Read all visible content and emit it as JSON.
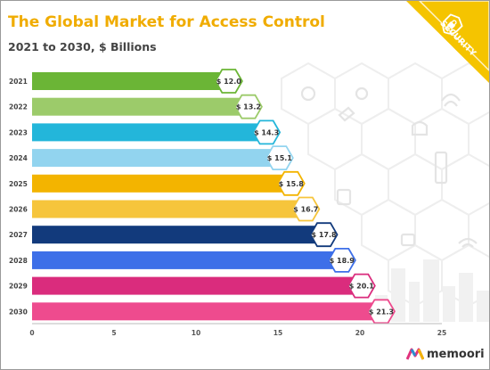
{
  "header": {
    "title": "The Global Market for Access Control",
    "subtitle": "2021 to 2030, $ Billions"
  },
  "badge": {
    "label": "SECURITY",
    "icon": "shield-lock-icon",
    "color": "#f5c400"
  },
  "brand": {
    "name": "memoori",
    "icon": "memoori-logo-icon"
  },
  "chart_data": {
    "type": "bar",
    "orientation": "horizontal",
    "title": "The Global Market for Access Control",
    "subtitle": "2021 to 2030, $ Billions",
    "xlabel": "",
    "ylabel": "",
    "categories": [
      "2021",
      "2022",
      "2023",
      "2024",
      "2025",
      "2026",
      "2027",
      "2028",
      "2029",
      "2030"
    ],
    "values": [
      12.0,
      13.2,
      14.3,
      15.1,
      15.8,
      16.7,
      17.8,
      18.9,
      20.1,
      21.3
    ],
    "data_labels": [
      "$ 12.0",
      "$ 13.2",
      "$ 14.3",
      "$ 15.1",
      "$ 15.8",
      "$ 16.7",
      "$ 17.8",
      "$ 18.9",
      "$ 20.1",
      "$ 21.3"
    ],
    "bar_colors": [
      "#6bb536",
      "#9ccb6a",
      "#23b6da",
      "#92d4ef",
      "#f3b400",
      "#f6c53c",
      "#123a7c",
      "#3d6fe8",
      "#da2c7d",
      "#ee4b8e"
    ],
    "x_ticks": [
      "0",
      "5",
      "10",
      "15",
      "20",
      "25"
    ],
    "xlim": [
      0,
      25
    ],
    "grid": false,
    "legend": "none"
  }
}
